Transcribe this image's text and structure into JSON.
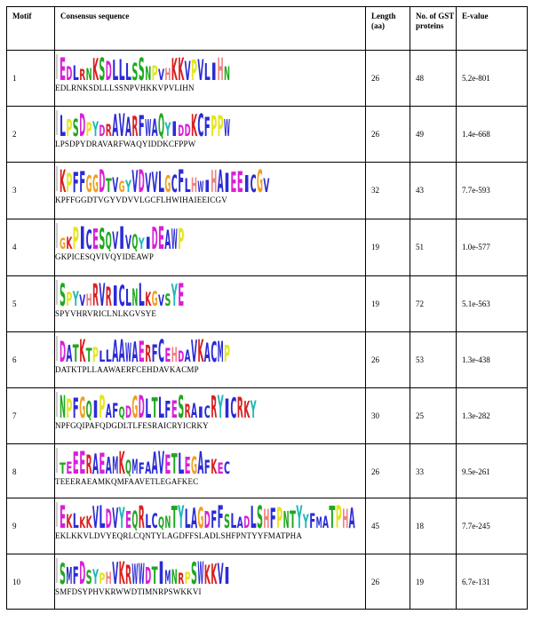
{
  "headers": {
    "motif": "Motif",
    "consensus": "Consensus sequence",
    "length": "Length (aa)",
    "gst": "No. of GST proteins",
    "evalue": "E-value"
  },
  "rows": [
    {
      "motif": "1",
      "sequence": "EDLRNKSDLLLSSNPVHKKVPVLIHN",
      "length": "26",
      "gst": "48",
      "evalue": "5.2e-801"
    },
    {
      "motif": "2",
      "sequence": "LPSDPYDRAVARFWAQYIDDKCFPPW",
      "length": "26",
      "gst": "49",
      "evalue": "1.4e-668"
    },
    {
      "motif": "3",
      "sequence": "KPFFGGDTVGYVDVVLGCFLHWIHAIEEICGV",
      "length": "32",
      "gst": "43",
      "evalue": "7.7e-593"
    },
    {
      "motif": "4",
      "sequence": "GKPICESQVIVQYIDEAWP",
      "length": "19",
      "gst": "51",
      "evalue": "1.0e-577"
    },
    {
      "motif": "5",
      "sequence": "SPYVHRVRICLNLKGVSYE",
      "length": "19",
      "gst": "72",
      "evalue": "5.1e-563"
    },
    {
      "motif": "6",
      "sequence": "DATKTPLLAAWAERFCEHDAVKACMP",
      "length": "26",
      "gst": "53",
      "evalue": "1.3e-438"
    },
    {
      "motif": "7",
      "sequence": "NPFGQIPAFQDGDLTLFESRAICRYICRKY",
      "length": "30",
      "gst": "25",
      "evalue": "1.3e-282"
    },
    {
      "motif": "8",
      "sequence": "TEEERAEAMKQMFAAVETLEGAFKEC",
      "length": "26",
      "gst": "33",
      "evalue": "9.5e-261"
    },
    {
      "motif": "9",
      "sequence": "EKLKKVLDVYEQRLCQNTYLAGDFFSLADLSHFPNTYYFMATPHA",
      "length": "45",
      "gst": "18",
      "evalue": "7.7e-245"
    },
    {
      "motif": "10",
      "sequence": "SMFDSYPHVKRWWDTIMNRPSWKKVI",
      "length": "26",
      "gst": "19",
      "evalue": "6.7e-131"
    }
  ],
  "colors": {
    "A": "#2b2bd6",
    "C": "#2b2bd6",
    "F": "#2b2bd6",
    "I": "#2b2bd6",
    "L": "#2b2bd6",
    "M": "#2b2bd6",
    "V": "#2b2bd6",
    "W": "#2b2bd6",
    "K": "#d82020",
    "R": "#d82020",
    "D": "#d81fd8",
    "E": "#d81fd8",
    "N": "#1fa81f",
    "Q": "#1fa81f",
    "S": "#1fa81f",
    "T": "#1fa81f",
    "G": "#f0a020",
    "P": "#e5e51f",
    "H": "#f08080",
    "Y": "#20b8b8"
  }
}
